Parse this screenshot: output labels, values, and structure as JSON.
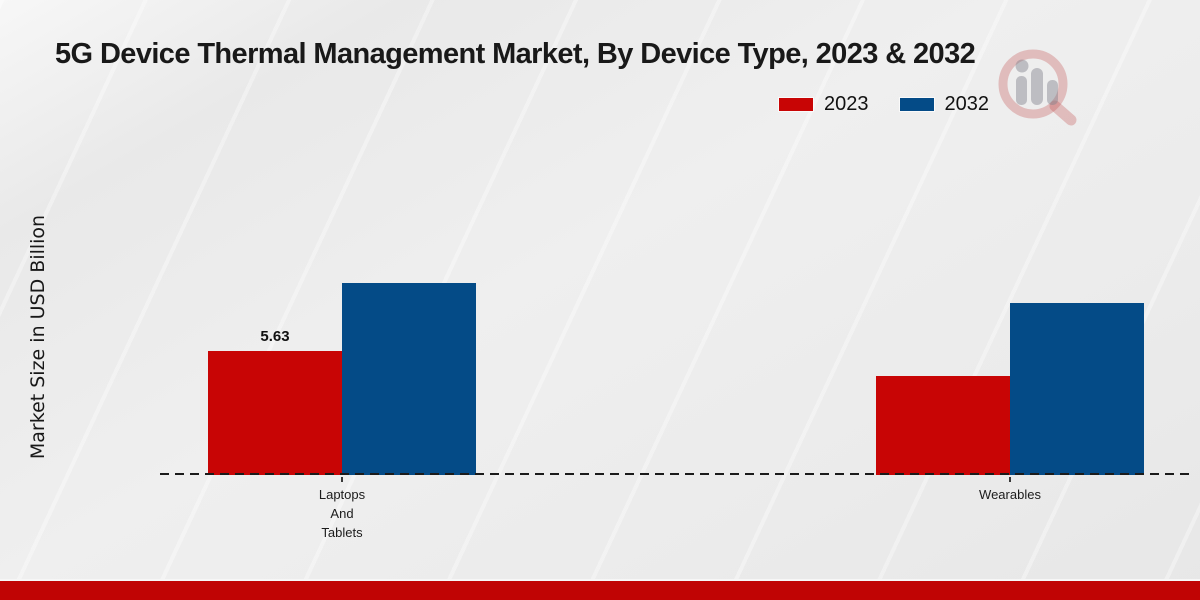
{
  "title": "5G Device Thermal Management Market, By Device Type, 2023 & 2032",
  "ylabel": "Market Size in USD Billion",
  "legend": {
    "position": "top-right",
    "items": [
      {
        "label": "2023",
        "color": "#c80505"
      },
      {
        "label": "2032",
        "color": "#044b87"
      }
    ]
  },
  "watermark_icon": "magnifier-bar-chart-logo",
  "theme": {
    "series_red": "#c80505",
    "series_blue": "#044b87",
    "zero_line_color": "#1b1b1b",
    "footer_stripe_color": "#c00404",
    "background": "#ececec",
    "text_color": "#191919"
  },
  "chart_data": {
    "type": "bar",
    "title": "5G Device Thermal Management Market, By Device Type, 2023 & 2032",
    "xlabel": "",
    "ylabel": "Market Size in USD Billion",
    "categories": [
      "Laptops\nAnd\nTablets",
      "Wearables"
    ],
    "series": [
      {
        "name": "2023",
        "color": "#c80505",
        "values": [
          5.63,
          4.5
        ]
      },
      {
        "name": "2032",
        "color": "#044b87",
        "values": [
          8.7,
          7.8
        ]
      }
    ],
    "value_labels": [
      [
        "5.63",
        null
      ],
      [
        null,
        null
      ]
    ],
    "ylim": [
      0,
      10
    ],
    "grid": false,
    "y_axis_ticks_visible": false,
    "zero_line_style": "dashed",
    "legend_position": "top-right"
  }
}
